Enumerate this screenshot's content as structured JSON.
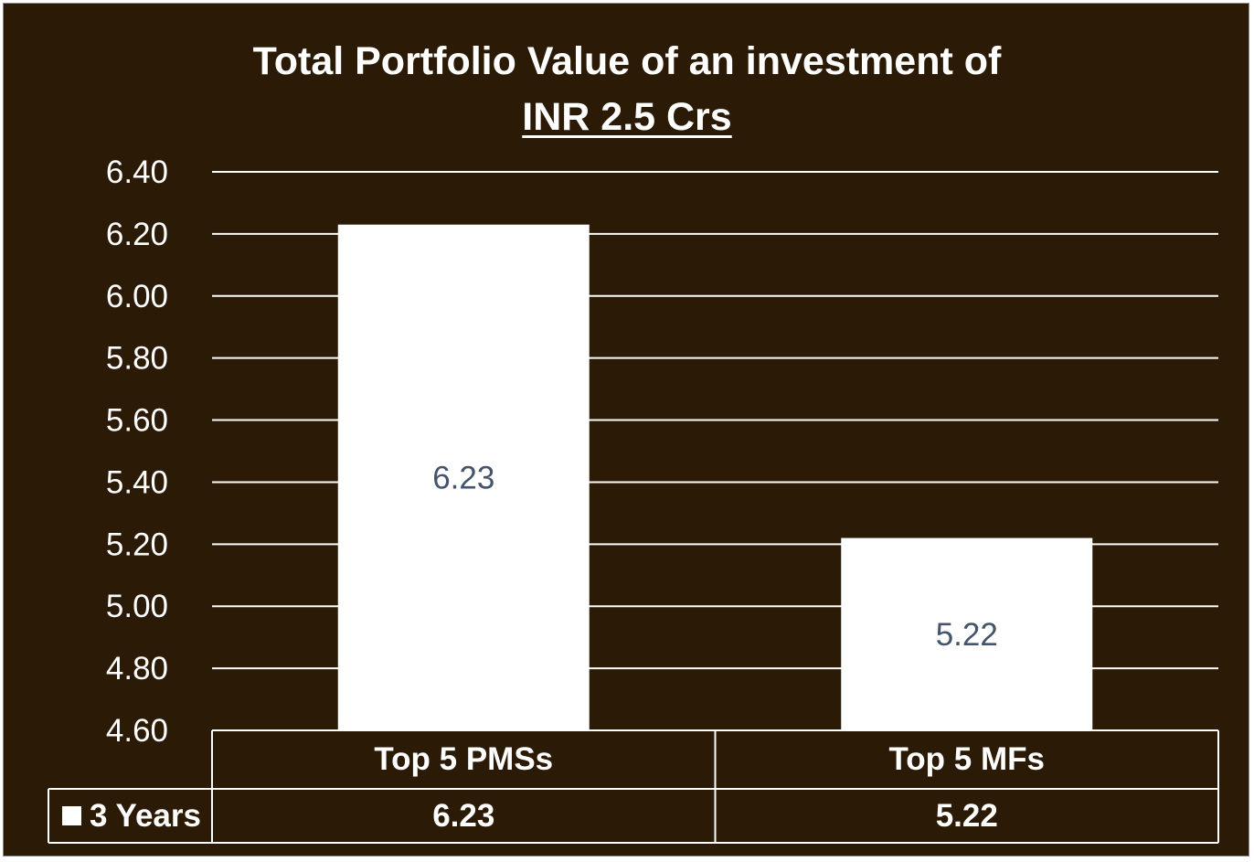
{
  "chart_data": {
    "type": "bar",
    "title": "Total Portfolio Value of an investment of",
    "subtitle": "INR 2.5 Crs",
    "categories": [
      "Top 5 PMSs",
      "Top 5 MFs"
    ],
    "series": [
      {
        "name": "3 Years",
        "values": [
          6.23,
          5.22
        ],
        "value_labels": [
          "6.23",
          "5.22"
        ],
        "table_values": [
          "6.23",
          "5.22"
        ],
        "color": "#ffffff"
      }
    ],
    "ylim": [
      4.6,
      6.4
    ],
    "yticks": [
      4.6,
      4.8,
      5.0,
      5.2,
      5.4,
      5.6,
      5.8,
      6.0,
      6.2,
      6.4
    ],
    "ytick_labels": [
      "4.60",
      "4.80",
      "5.00",
      "5.20",
      "5.40",
      "5.60",
      "5.80",
      "6.00",
      "6.20",
      "6.40"
    ],
    "grid": true,
    "data_table": true,
    "legend_placement": "data-table",
    "colors": {
      "background": "#2b1a05",
      "bar": "#ffffff",
      "gridline": "#ffffff",
      "data_label": "#44546a",
      "text": "#ffffff"
    }
  }
}
